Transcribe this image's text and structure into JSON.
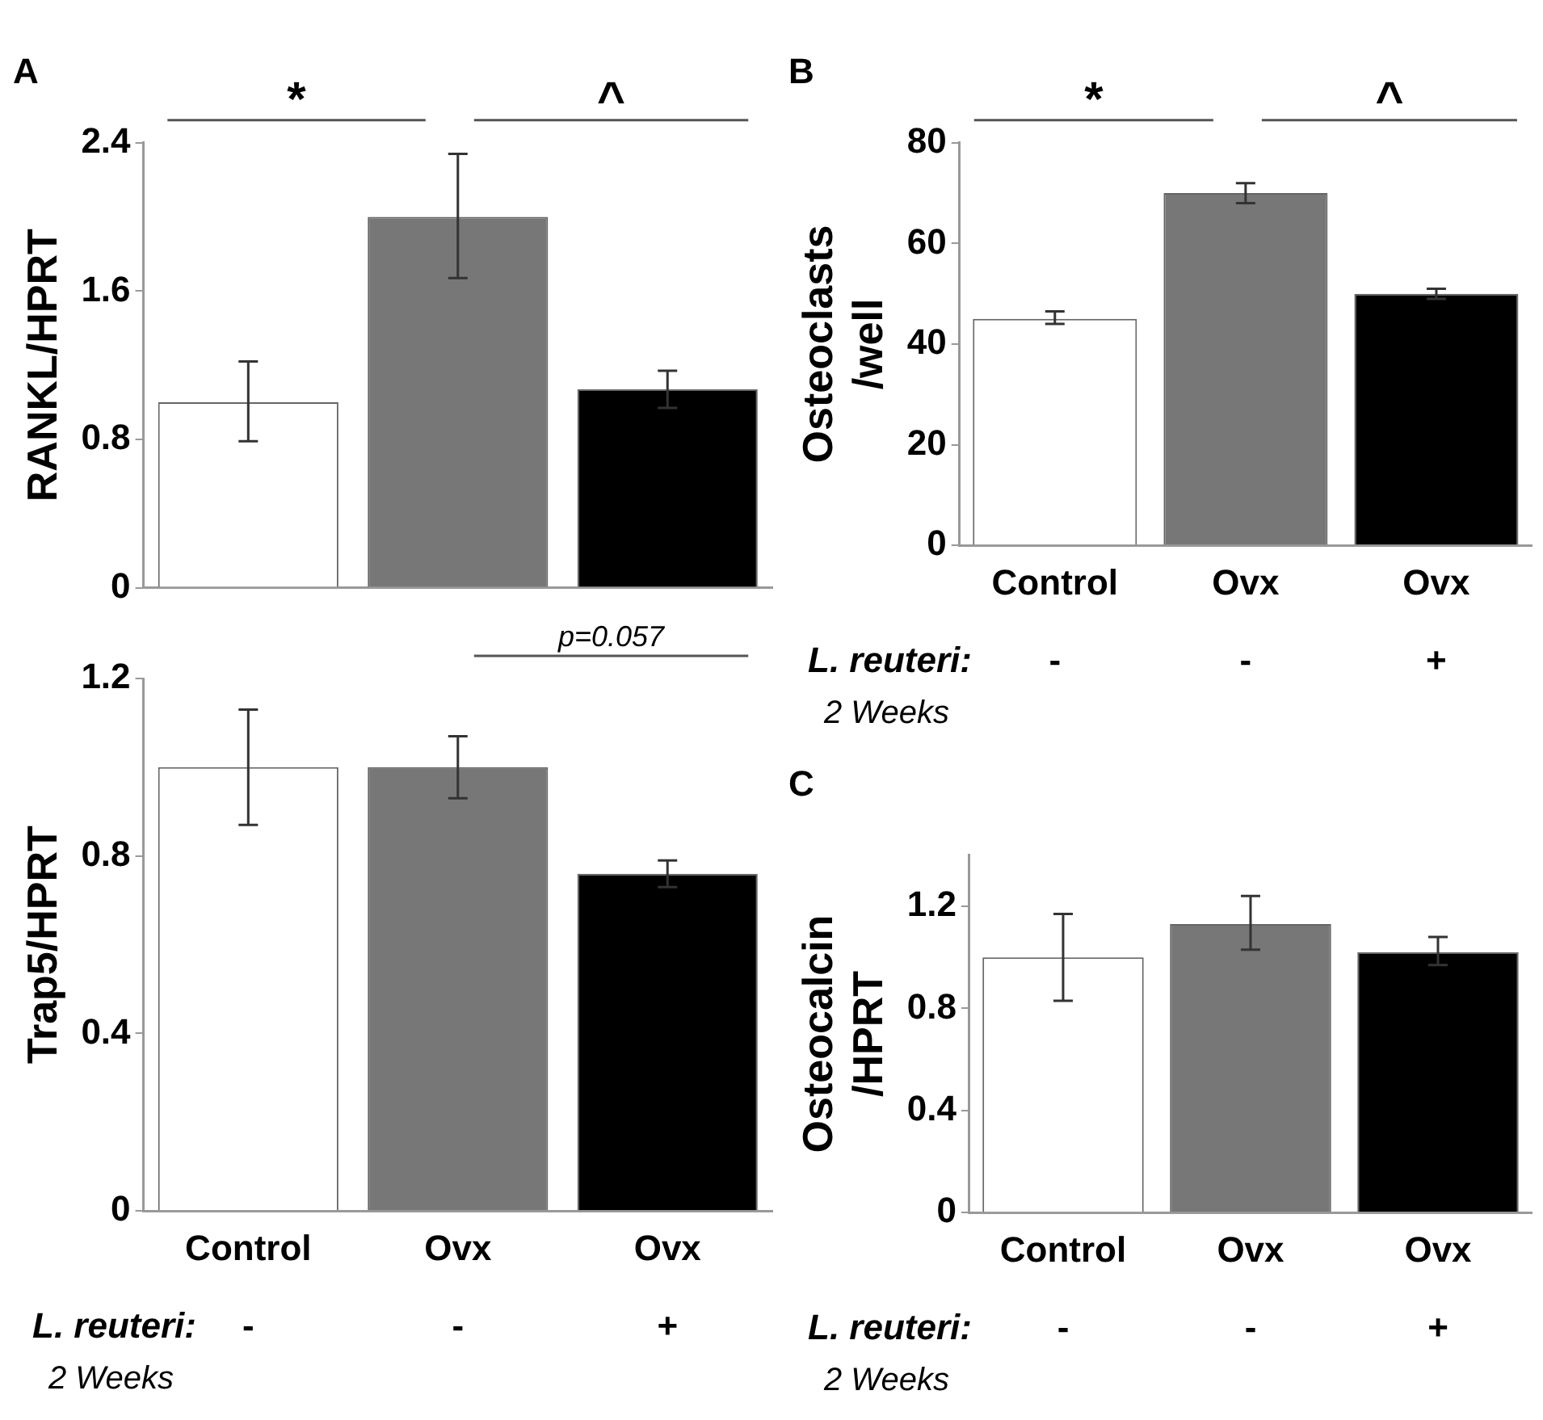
{
  "chart_data": [
    {
      "type": "bar",
      "title": "A",
      "ylabel": "RANKL/HPRT",
      "categories": [
        null,
        null,
        null
      ],
      "values": [
        1.0,
        2.0,
        1.07
      ],
      "errors": [
        [
          0.79,
          1.22
        ],
        [
          1.67,
          2.34
        ],
        [
          0.97,
          1.17
        ]
      ],
      "colors": [
        "#ffffff",
        "#777777",
        "#000000"
      ],
      "ylim": [
        0,
        2.4
      ],
      "yticks": [
        0,
        0.8,
        1.6,
        2.4
      ],
      "grid": false,
      "annotations": [
        "*",
        "^"
      ]
    },
    {
      "type": "bar",
      "ylabel": "Trap5/HPRT",
      "categories": [
        "Control",
        "Ovx",
        "Ovx"
      ],
      "values": [
        1.0,
        1.0,
        0.76
      ],
      "errors": [
        [
          0.87,
          1.13
        ],
        [
          0.93,
          1.07
        ],
        [
          0.73,
          0.79
        ]
      ],
      "colors": [
        "#ffffff",
        "#777777",
        "#000000"
      ],
      "ylim": [
        0,
        1.2
      ],
      "yticks": [
        0,
        0.4,
        0.8,
        1.2
      ],
      "grid": false,
      "annotations": [
        "p=0.057",
        "L. reuteri:",
        "-",
        "-",
        "+",
        "2 Weeks"
      ]
    },
    {
      "type": "bar",
      "title": "B",
      "ylabel": "Osteoclasts\n/well",
      "categories": [
        "Control",
        "Ovx",
        "Ovx"
      ],
      "values": [
        45,
        70,
        50
      ],
      "errors": [
        [
          44,
          46.5
        ],
        [
          68,
          72
        ],
        [
          49,
          51
        ]
      ],
      "colors": [
        "#ffffff",
        "#777777",
        "#000000"
      ],
      "ylim": [
        0,
        80
      ],
      "yticks": [
        0,
        20,
        40,
        60,
        80
      ],
      "grid": false,
      "annotations": [
        "*",
        "^",
        "L. reuteri:",
        "-",
        "-",
        "+",
        "2 Weeks"
      ]
    },
    {
      "type": "bar",
      "title": "C",
      "ylabel": "Osteocalcin\n/HPRT",
      "categories": [
        "Control",
        "Ovx",
        "Ovx"
      ],
      "values": [
        1.0,
        1.13,
        1.02
      ],
      "errors": [
        [
          0.83,
          1.17
        ],
        [
          1.03,
          1.24
        ],
        [
          0.97,
          1.08
        ]
      ],
      "colors": [
        "#ffffff",
        "#777777",
        "#000000"
      ],
      "ylim": [
        0,
        1.4
      ],
      "yticks": [
        0,
        0.4,
        0.8,
        1.2
      ],
      "grid": false,
      "annotations": [
        "L. reuteri:",
        "-",
        "-",
        "+",
        "2 Weeks"
      ]
    }
  ]
}
